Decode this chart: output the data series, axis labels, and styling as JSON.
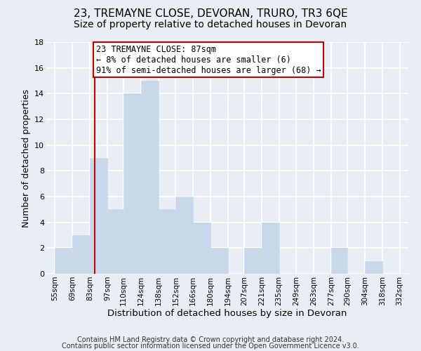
{
  "title": "23, TREMAYNE CLOSE, DEVORAN, TRURO, TR3 6QE",
  "subtitle": "Size of property relative to detached houses in Devoran",
  "xlabel": "Distribution of detached houses by size in Devoran",
  "ylabel": "Number of detached properties",
  "bin_edges": [
    55,
    69,
    83,
    97,
    110,
    124,
    138,
    152,
    166,
    180,
    194,
    207,
    221,
    235,
    249,
    263,
    277,
    290,
    304,
    318,
    332
  ],
  "counts": [
    2,
    3,
    9,
    5,
    14,
    15,
    5,
    6,
    4,
    2,
    0,
    2,
    4,
    0,
    0,
    0,
    2,
    0,
    1,
    0
  ],
  "bar_color": "#c8d8ea",
  "bar_edge_color": "#d0dce8",
  "reference_line_x": 87,
  "reference_line_color": "#cc0000",
  "annotation_line1": "23 TREMAYNE CLOSE: 87sqm",
  "annotation_line2": "← 8% of detached houses are smaller (6)",
  "annotation_line3": "91% of semi-detached houses are larger (68) →",
  "annotation_box_color": "#ffffff",
  "annotation_box_edge_color": "#cc0000",
  "ylim": [
    0,
    18
  ],
  "yticks": [
    0,
    2,
    4,
    6,
    8,
    10,
    12,
    14,
    16,
    18
  ],
  "tick_labels": [
    "55sqm",
    "69sqm",
    "83sqm",
    "97sqm",
    "110sqm",
    "124sqm",
    "138sqm",
    "152sqm",
    "166sqm",
    "180sqm",
    "194sqm",
    "207sqm",
    "221sqm",
    "235sqm",
    "249sqm",
    "263sqm",
    "277sqm",
    "290sqm",
    "304sqm",
    "318sqm",
    "332sqm"
  ],
  "footer_line1": "Contains HM Land Registry data © Crown copyright and database right 2024.",
  "footer_line2": "Contains public sector information licensed under the Open Government Licence v3.0.",
  "background_color": "#e8eef4",
  "grid_color": "#ffffff",
  "title_fontsize": 11,
  "subtitle_fontsize": 10,
  "xlabel_fontsize": 9.5,
  "ylabel_fontsize": 9,
  "footer_fontsize": 7,
  "bar_fontsize": 8,
  "tick_fontsize": 7.5,
  "annotation_fontsize": 8.5
}
